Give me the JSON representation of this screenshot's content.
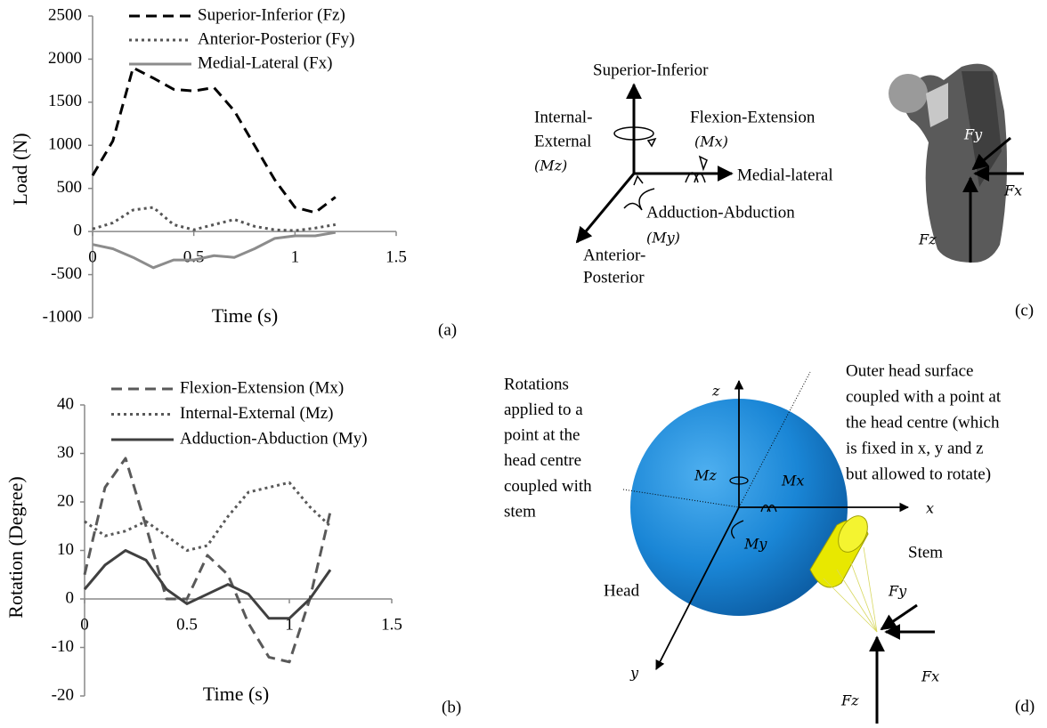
{
  "chart_data": [
    {
      "type": "line",
      "panel_label": "(a)",
      "x_label": "Time (s)",
      "y_label": "Load (N)",
      "x": [
        0,
        0.1,
        0.2,
        0.3,
        0.4,
        0.5,
        0.6,
        0.7,
        0.8,
        0.9,
        1.0,
        1.1,
        1.2
      ],
      "series": [
        {
          "name": "Superior-Inferior (Fz)",
          "color": "#000000",
          "line_style": "dashed",
          "values": [
            650,
            1050,
            1900,
            1780,
            1650,
            1630,
            1670,
            1400,
            1000,
            600,
            280,
            220,
            400
          ]
        },
        {
          "name": "Anterior-Posterior (Fy)",
          "color": "#555555",
          "line_style": "dotted",
          "values": [
            30,
            100,
            250,
            280,
            80,
            20,
            80,
            140,
            60,
            20,
            10,
            40,
            80
          ]
        },
        {
          "name": "Medial-Lateral (Fx)",
          "color": "#8c8c8c",
          "line_style": "solid",
          "values": [
            -150,
            -200,
            -300,
            -420,
            -330,
            -330,
            -280,
            -300,
            -200,
            -80,
            -50,
            -50,
            -10
          ]
        }
      ],
      "xlim": [
        0,
        1.5
      ],
      "xticks": [
        0,
        0.5,
        1,
        1.5
      ],
      "ylim": [
        -1000,
        2500
      ],
      "yticks": [
        -1000,
        -500,
        0,
        500,
        1000,
        1500,
        2000,
        2500
      ]
    },
    {
      "type": "line",
      "panel_label": "(b)",
      "x_label": "Time (s)",
      "y_label": "Rotation (Degree)",
      "x": [
        0,
        0.1,
        0.2,
        0.3,
        0.4,
        0.5,
        0.6,
        0.7,
        0.8,
        0.9,
        1.0,
        1.1,
        1.2
      ],
      "series": [
        {
          "name": "Flexion-Extension (Mx)",
          "color": "#595959",
          "line_style": "dashed",
          "values": [
            5,
            23,
            29,
            15,
            0,
            0,
            9,
            5,
            -5,
            -12,
            -13,
            0,
            18
          ]
        },
        {
          "name": "Internal-External (Mz)",
          "color": "#595959",
          "line_style": "dotted",
          "values": [
            16,
            13,
            14,
            16,
            13,
            10,
            11,
            17,
            22,
            23,
            24,
            19,
            15
          ]
        },
        {
          "name": "Adduction-Abduction (My)",
          "color": "#404040",
          "line_style": "solid",
          "values": [
            2,
            7,
            10,
            8,
            2,
            -1,
            1,
            3,
            1,
            -4,
            -4,
            0,
            6
          ]
        }
      ],
      "xlim": [
        0,
        1.5
      ],
      "xticks": [
        0,
        0.5,
        1,
        1.5
      ],
      "ylim": [
        -20,
        40
      ],
      "yticks": [
        -20,
        -10,
        0,
        10,
        20,
        30,
        40
      ]
    }
  ],
  "diagram_c": {
    "panel_label": "(c)",
    "superior_inferior": "Superior-Inferior",
    "internal_external": [
      "Internal-",
      "External",
      "(Mz)"
    ],
    "flexion_extension": [
      "Flexion-Extension",
      "(Mx)"
    ],
    "medial_lateral": "Medial-lateral",
    "adduction_abduction": [
      "Adduction-Abduction",
      "(My)"
    ],
    "anterior_posterior": [
      "Anterior-",
      "Posterior"
    ],
    "forces": {
      "fy": "Fy",
      "fx": "Fx",
      "fz": "Fz"
    }
  },
  "diagram_d": {
    "panel_label": "(d)",
    "axes": {
      "z": "z",
      "x": "x",
      "y": "y"
    },
    "moments": {
      "mz": "Mz",
      "mx": "Mx",
      "my": "My"
    },
    "head": "Head",
    "stem": "Stem",
    "forces": {
      "fy": "Fy",
      "fx": "Fx",
      "fz": "Fz"
    },
    "rotations_note": [
      "Rotations",
      "applied to a",
      "point at the",
      "head centre",
      "coupled with",
      "stem"
    ],
    "surface_note": [
      "Outer head surface",
      "coupled with a point at",
      "the head centre (which",
      "is fixed in x, y and z",
      "but allowed to rotate)"
    ]
  }
}
